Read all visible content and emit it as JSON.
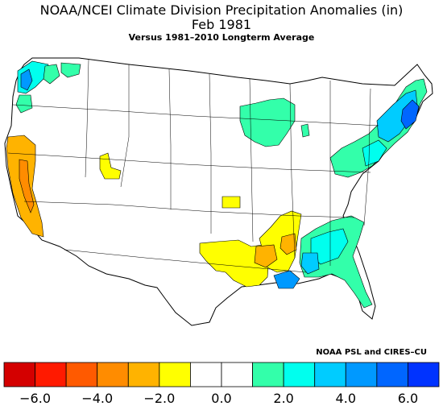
{
  "header": {
    "title": "NOAA/NCEI Climate Division Precipitation Anomalies (in)",
    "period": "Feb 1981",
    "baseline": "Versus 1981–2010 Longterm Average"
  },
  "credit": "NOAA PSL and CIRES–CU",
  "colors": {
    "bin_colors": [
      "#d40000",
      "#ff1a00",
      "#ff5a00",
      "#ff8c00",
      "#ffb300",
      "#ffff00",
      "#ffffff",
      "#ffffff",
      "#33ffaa",
      "#00ffee",
      "#00ccff",
      "#0099ff",
      "#0066ff",
      "#0033ff"
    ],
    "land": "#ffffff",
    "border": "#000000"
  },
  "legend": {
    "bin_edges": [
      -7,
      -6,
      -5,
      -4,
      -3,
      -2,
      -1,
      0,
      1,
      2,
      3,
      4,
      5,
      6,
      7
    ],
    "tick_labels": [
      {
        "label": "−6.0",
        "value": -6
      },
      {
        "label": "−4.0",
        "value": -4
      },
      {
        "label": "−2.0",
        "value": -2
      },
      {
        "label": "0.0",
        "value": 0
      },
      {
        "label": "2.0",
        "value": 2
      },
      {
        "label": "4.0",
        "value": 4
      },
      {
        "label": "6.0",
        "value": 6
      }
    ]
  }
}
